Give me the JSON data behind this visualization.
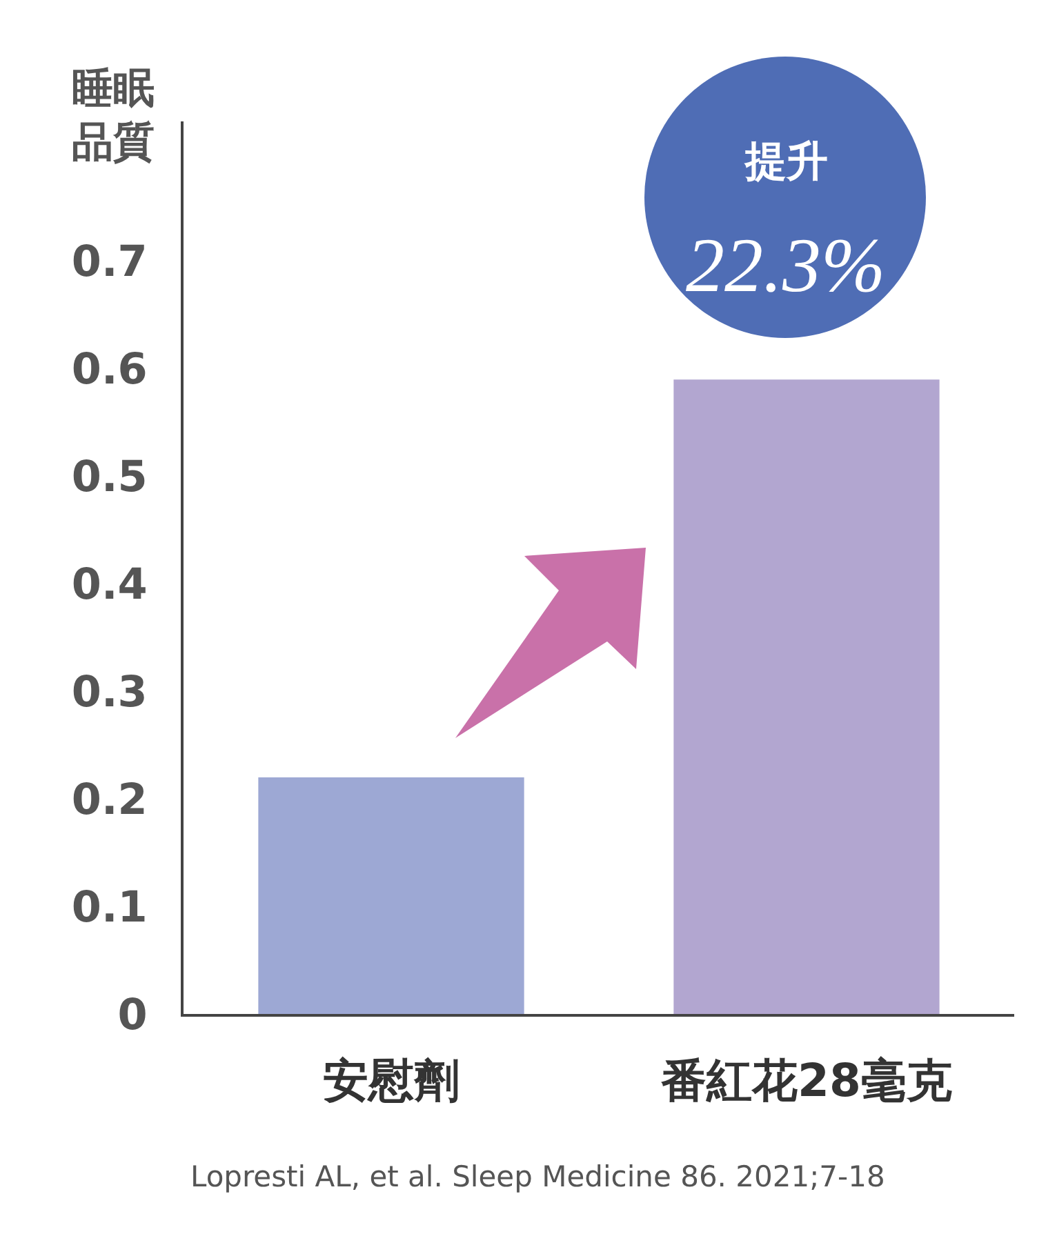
{
  "chart_data": {
    "type": "bar",
    "ylabel": "睡眠品質",
    "categories": [
      "安慰劑",
      "番紅花28毫克"
    ],
    "values": [
      0.22,
      0.59
    ],
    "colors": [
      "#9da8d4",
      "#b2a6d0"
    ],
    "ylim": [
      0,
      0.83
    ],
    "yticks": [
      0,
      0.1,
      0.2,
      0.3,
      0.4,
      0.5,
      0.6,
      0.7
    ],
    "annotations": [
      "提升\n22.3%",
      "Lopresti AL, et al. Sleep Medicine 86. 2021;7-18"
    ]
  }
}
